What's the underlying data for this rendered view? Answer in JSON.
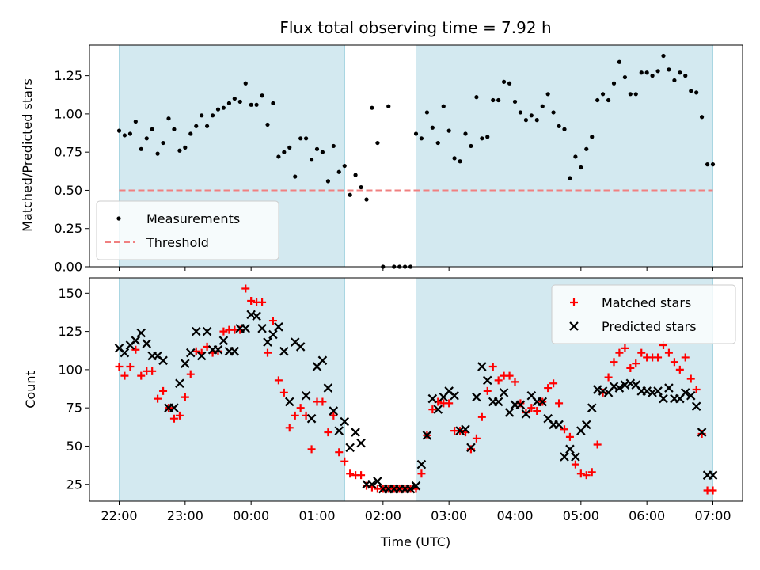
{
  "chart_data": {
    "type": "scatter",
    "title": "Flux total observing time = 7.92 h",
    "xlabel": "Time (UTC)",
    "x_unit": "hours since 22:00",
    "xlim": [
      -0.45,
      9.45
    ],
    "x_ticks": [
      {
        "x": 0,
        "label": "22:00"
      },
      {
        "x": 1,
        "label": "23:00"
      },
      {
        "x": 2,
        "label": "00:00"
      },
      {
        "x": 3,
        "label": "01:00"
      },
      {
        "x": 4,
        "label": "02:00"
      },
      {
        "x": 5,
        "label": "03:00"
      },
      {
        "x": 6,
        "label": "04:00"
      },
      {
        "x": 7,
        "label": "05:00"
      },
      {
        "x": 8,
        "label": "06:00"
      },
      {
        "x": 9,
        "label": "07:00"
      }
    ],
    "shaded_intervals": [
      [
        0,
        3.42
      ],
      [
        4.5,
        9.0
      ]
    ],
    "shade_color": "#d3e9f0",
    "panels": [
      {
        "ylabel": "Matched/Predicted stars",
        "ylim": [
          0,
          1.45
        ],
        "y_ticks": [
          0,
          0.25,
          0.5,
          0.75,
          1.0,
          1.25
        ],
        "y_tick_labels": [
          "0.00",
          "0.25",
          "0.50",
          "0.75",
          "1.00",
          "1.25"
        ],
        "legend_position": "lower-left",
        "threshold": {
          "name": "Threshold",
          "y": 0.5,
          "color": "#f08080",
          "style": "dashed"
        },
        "series": [
          {
            "name": "Measurements",
            "marker": "dot",
            "color": "#000000",
            "x": [
              0,
              0.083,
              0.167,
              0.25,
              0.333,
              0.417,
              0.5,
              0.583,
              0.667,
              0.75,
              0.833,
              0.917,
              1.0,
              1.083,
              1.167,
              1.25,
              1.333,
              1.417,
              1.5,
              1.583,
              1.667,
              1.75,
              1.833,
              1.917,
              2.0,
              2.083,
              2.167,
              2.25,
              2.333,
              2.417,
              2.5,
              2.583,
              2.667,
              2.75,
              2.833,
              2.917,
              3.0,
              3.083,
              3.167,
              3.25,
              3.333,
              3.417,
              3.5,
              3.583,
              3.667,
              3.75,
              3.833,
              3.917,
              4.0,
              4.083,
              4.167,
              4.25,
              4.333,
              4.417,
              4.5,
              4.583,
              4.667,
              4.75,
              4.833,
              4.917,
              5.0,
              5.083,
              5.167,
              5.25,
              5.333,
              5.417,
              5.5,
              5.583,
              5.667,
              5.75,
              5.833,
              5.917,
              6.0,
              6.083,
              6.167,
              6.25,
              6.333,
              6.417,
              6.5,
              6.583,
              6.667,
              6.75,
              6.833,
              6.917,
              7.0,
              7.083,
              7.167,
              7.25,
              7.333,
              7.417,
              7.5,
              7.583,
              7.667,
              7.75,
              7.833,
              7.917,
              8.0,
              8.083,
              8.167,
              8.25,
              8.333,
              8.417,
              8.5,
              8.583,
              8.667,
              8.75,
              8.833,
              8.917,
              9.0
            ],
            "y": [
              0.89,
              0.86,
              0.87,
              0.95,
              0.77,
              0.84,
              0.9,
              0.74,
              0.81,
              0.97,
              0.9,
              0.76,
              0.78,
              0.87,
              0.92,
              0.99,
              0.92,
              0.99,
              1.03,
              1.04,
              1.07,
              1.1,
              1.08,
              1.2,
              1.06,
              1.06,
              1.12,
              0.93,
              1.07,
              0.72,
              0.75,
              0.78,
              0.59,
              0.84,
              0.84,
              0.7,
              0.77,
              0.75,
              0.56,
              0.79,
              0.62,
              0.66,
              0.47,
              0.6,
              0.52,
              0.44,
              1.04,
              0.81,
              0.0,
              1.05,
              0.0,
              0.0,
              0.0,
              0.0,
              0.87,
              0.84,
              1.01,
              0.91,
              0.81,
              1.05,
              0.89,
              0.71,
              0.69,
              0.87,
              0.79,
              1.11,
              0.84,
              0.85,
              1.09,
              1.09,
              1.21,
              1.2,
              1.08,
              1.01,
              0.96,
              0.99,
              0.96,
              1.05,
              1.13,
              1.01,
              0.92,
              0.9,
              0.58,
              0.72,
              0.65,
              0.77,
              0.85,
              1.09,
              1.13,
              1.09,
              1.2,
              1.34,
              1.24,
              1.13,
              1.13,
              1.27,
              1.27,
              1.25,
              1.28,
              1.38,
              1.29,
              1.22,
              1.27,
              1.25,
              1.15,
              1.14,
              0.98,
              0.67,
              0.67
            ]
          }
        ]
      },
      {
        "ylabel": "Count",
        "ylim": [
          14,
          160
        ],
        "y_ticks": [
          25,
          50,
          75,
          100,
          125,
          150
        ],
        "y_tick_labels": [
          "25",
          "50",
          "75",
          "100",
          "125",
          "150"
        ],
        "legend_position": "top-right",
        "series": [
          {
            "name": "Matched stars",
            "marker": "plus",
            "color": "#ff0000",
            "x": [
              0,
              0.083,
              0.167,
              0.25,
              0.333,
              0.417,
              0.5,
              0.583,
              0.667,
              0.75,
              0.833,
              0.917,
              1.0,
              1.083,
              1.167,
              1.25,
              1.333,
              1.417,
              1.5,
              1.583,
              1.667,
              1.75,
              1.833,
              1.917,
              2.0,
              2.083,
              2.167,
              2.25,
              2.333,
              2.417,
              2.5,
              2.583,
              2.667,
              2.75,
              2.833,
              2.917,
              3.0,
              3.083,
              3.167,
              3.25,
              3.333,
              3.417,
              3.5,
              3.583,
              3.667,
              3.75,
              3.833,
              3.917,
              4.0,
              4.083,
              4.167,
              4.25,
              4.333,
              4.417,
              4.5,
              4.583,
              4.667,
              4.75,
              4.833,
              4.917,
              5.0,
              5.083,
              5.167,
              5.25,
              5.333,
              5.417,
              5.5,
              5.583,
              5.667,
              5.75,
              5.833,
              5.917,
              6.0,
              6.083,
              6.167,
              6.25,
              6.333,
              6.417,
              6.5,
              6.583,
              6.667,
              6.75,
              6.833,
              6.917,
              7.0,
              7.083,
              7.167,
              7.25,
              7.333,
              7.417,
              7.5,
              7.583,
              7.667,
              7.75,
              7.833,
              7.917,
              8.0,
              8.083,
              8.167,
              8.25,
              8.333,
              8.417,
              8.5,
              8.583,
              8.667,
              8.75,
              8.833,
              8.917,
              9.0
            ],
            "y": [
              102,
              96,
              102,
              113,
              96,
              99,
              99,
              81,
              86,
              75,
              68,
              70,
              82,
              97,
              112,
              111,
              115,
              111,
              112,
              125,
              126,
              126,
              126,
              153,
              145,
              144,
              144,
              111,
              132,
              93,
              85,
              62,
              70,
              75,
              70,
              48,
              79,
              79,
              59,
              70,
              46,
              40,
              32,
              31,
              31,
              24,
              23,
              22,
              22,
              22,
              22,
              22,
              22,
              22,
              22,
              32,
              57,
              74,
              79,
              78,
              78,
              60,
              60,
              59,
              48,
              55,
              69,
              86,
              102,
              93,
              96,
              96,
              92,
              78,
              72,
              75,
              73,
              79,
              88,
              91,
              78,
              61,
              56,
              38,
              32,
              31,
              33,
              51,
              85,
              95,
              105,
              111,
              114,
              101,
              104,
              111,
              108,
              108,
              108,
              116,
              111,
              105,
              100,
              108,
              94,
              87,
              58,
              21,
              21
            ]
          },
          {
            "name": "Predicted stars",
            "marker": "x",
            "color": "#000000",
            "x": [
              0,
              0.083,
              0.167,
              0.25,
              0.333,
              0.417,
              0.5,
              0.583,
              0.667,
              0.75,
              0.833,
              0.917,
              1.0,
              1.083,
              1.167,
              1.25,
              1.333,
              1.417,
              1.5,
              1.583,
              1.667,
              1.75,
              1.833,
              1.917,
              2.0,
              2.083,
              2.167,
              2.25,
              2.333,
              2.417,
              2.5,
              2.583,
              2.667,
              2.75,
              2.833,
              2.917,
              3.0,
              3.083,
              3.167,
              3.25,
              3.333,
              3.417,
              3.5,
              3.583,
              3.667,
              3.75,
              3.833,
              3.917,
              4.0,
              4.083,
              4.167,
              4.25,
              4.333,
              4.417,
              4.5,
              4.583,
              4.667,
              4.75,
              4.833,
              4.917,
              5.0,
              5.083,
              5.167,
              5.25,
              5.333,
              5.417,
              5.5,
              5.583,
              5.667,
              5.75,
              5.833,
              5.917,
              6.0,
              6.083,
              6.167,
              6.25,
              6.333,
              6.417,
              6.5,
              6.583,
              6.667,
              6.75,
              6.833,
              6.917,
              7.0,
              7.083,
              7.167,
              7.25,
              7.333,
              7.417,
              7.5,
              7.583,
              7.667,
              7.75,
              7.833,
              7.917,
              8.0,
              8.083,
              8.167,
              8.25,
              8.333,
              8.417,
              8.5,
              8.583,
              8.667,
              8.75,
              8.833,
              8.917,
              9.0
            ],
            "y": [
              114,
              111,
              116,
              119,
              124,
              117,
              109,
              109,
              106,
              75,
              75,
              91,
              104,
              111,
              125,
              109,
              125,
              113,
              113,
              119,
              112,
              112,
              127,
              127,
              136,
              135,
              127,
              118,
              123,
              128,
              112,
              79,
              118,
              115,
              83,
              68,
              102,
              106,
              88,
              73,
              60,
              66,
              49,
              59,
              52,
              25,
              25,
              27,
              22,
              22,
              22,
              22,
              22,
              22,
              24,
              38,
              57,
              81,
              74,
              82,
              86,
              83,
              60,
              61,
              49,
              82,
              102,
              93,
              79,
              79,
              85,
              72,
              77,
              77,
              71,
              83,
              79,
              79,
              68,
              64,
              64,
              43,
              48,
              43,
              60,
              64,
              75,
              87,
              86,
              85,
              89,
              88,
              90,
              91,
              90,
              86,
              86,
              85,
              86,
              81,
              88,
              81,
              81,
              85,
              83,
              76,
              59,
              31,
              31
            ]
          }
        ]
      }
    ]
  }
}
